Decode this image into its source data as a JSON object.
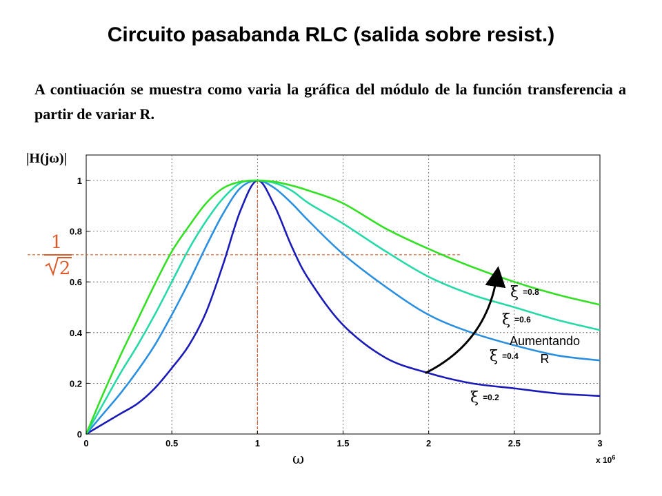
{
  "header": {
    "title": "Circuito pasabanda RLC (salida sobre resist.)",
    "description": "A contiuación se muestra como varia la gráfica del módulo de la función transferencia a partir de variar R."
  },
  "chart_data": {
    "type": "line",
    "ylabel": "|H(jω)|",
    "xlabel": "ω",
    "x_multiplier_base": "x 10",
    "x_multiplier_exp": "6",
    "xlim": [
      0,
      3
    ],
    "ylim": [
      0,
      1.05
    ],
    "x_ticks": [
      0,
      0.5,
      1,
      1.5,
      2,
      2.5,
      3
    ],
    "x_tick_labels": [
      "0",
      "0.5",
      "1",
      "1.5",
      "2",
      "2.5",
      "3"
    ],
    "y_ticks": [
      0,
      0.2,
      0.4,
      0.6,
      0.8,
      1
    ],
    "y_tick_labels": [
      "0",
      "0.2",
      "0.4",
      "0.6",
      "0.8",
      "1"
    ],
    "grid": true,
    "series": [
      {
        "xi": 0.2,
        "color": "#1a1ab8",
        "label_prefix": "ξ",
        "label": "=0.2",
        "x": [
          0,
          0.1,
          0.2,
          0.3,
          0.4,
          0.5,
          0.6,
          0.7,
          0.8,
          0.9,
          1.0,
          1.1,
          1.2,
          1.3,
          1.5,
          1.75,
          2.0,
          2.25,
          2.5,
          2.75,
          3.0
        ],
        "values": [
          0,
          0.04,
          0.08,
          0.12,
          0.18,
          0.26,
          0.35,
          0.48,
          0.67,
          0.88,
          1.0,
          0.9,
          0.74,
          0.61,
          0.43,
          0.3,
          0.24,
          0.2,
          0.18,
          0.16,
          0.15
        ]
      },
      {
        "xi": 0.4,
        "color": "#2b8fe0",
        "label_prefix": "ξ",
        "label": "=0.4",
        "x": [
          0,
          0.1,
          0.2,
          0.3,
          0.4,
          0.5,
          0.6,
          0.7,
          0.8,
          0.9,
          1.0,
          1.1,
          1.2,
          1.3,
          1.5,
          1.75,
          2.0,
          2.25,
          2.5,
          2.75,
          3.0
        ],
        "values": [
          0,
          0.08,
          0.16,
          0.25,
          0.35,
          0.47,
          0.6,
          0.74,
          0.87,
          0.97,
          1.0,
          0.97,
          0.91,
          0.84,
          0.71,
          0.58,
          0.47,
          0.4,
          0.35,
          0.31,
          0.29
        ]
      },
      {
        "xi": 0.6,
        "color": "#28d9a8",
        "label_prefix": "ξ",
        "label": "=0.6",
        "x": [
          0,
          0.1,
          0.2,
          0.3,
          0.4,
          0.5,
          0.6,
          0.7,
          0.8,
          0.9,
          1.0,
          1.1,
          1.2,
          1.3,
          1.5,
          1.75,
          2.0,
          2.25,
          2.5,
          2.75,
          3.0
        ],
        "values": [
          0,
          0.12,
          0.24,
          0.35,
          0.47,
          0.6,
          0.73,
          0.84,
          0.93,
          0.99,
          1.0,
          0.99,
          0.96,
          0.91,
          0.83,
          0.72,
          0.62,
          0.55,
          0.5,
          0.45,
          0.41
        ]
      },
      {
        "xi": 0.8,
        "color": "#33e024",
        "label_prefix": "ξ",
        "label": "=0.8",
        "x": [
          0,
          0.1,
          0.2,
          0.3,
          0.4,
          0.5,
          0.6,
          0.7,
          0.8,
          0.9,
          1.0,
          1.1,
          1.2,
          1.3,
          1.5,
          1.75,
          2.0,
          2.25,
          2.5,
          2.75,
          3.0
        ],
        "values": [
          0,
          0.16,
          0.31,
          0.45,
          0.59,
          0.72,
          0.82,
          0.91,
          0.97,
          0.995,
          1.0,
          0.995,
          0.98,
          0.96,
          0.91,
          0.81,
          0.73,
          0.66,
          0.6,
          0.55,
          0.51
        ]
      }
    ],
    "reference_lines": {
      "horizontal_y": 0.707,
      "vertical_x": 1,
      "color": "#d95a2b"
    },
    "fraction_numerator": "1",
    "fraction_denominator": "2",
    "annotation": {
      "line1": "Aumentando",
      "line2": "R",
      "arrow_from": [
        1.98,
        0.24
      ],
      "arrow_to": [
        2.4,
        0.63
      ]
    }
  }
}
